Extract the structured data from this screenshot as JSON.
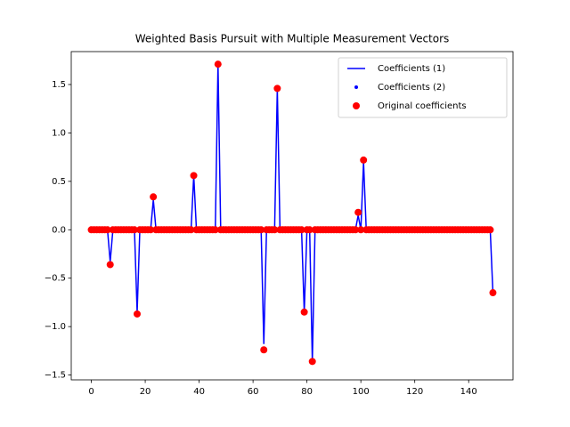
{
  "chart_data": {
    "type": "line",
    "title": "Weighted Basis Pursuit with Multiple Measurement Vectors",
    "x": [
      0,
      1,
      2,
      3,
      4,
      5,
      6,
      7,
      8,
      9,
      10,
      11,
      12,
      13,
      14,
      15,
      16,
      17,
      18,
      19,
      20,
      21,
      22,
      23,
      24,
      25,
      26,
      27,
      28,
      29,
      30,
      31,
      32,
      33,
      34,
      35,
      36,
      37,
      38,
      39,
      40,
      41,
      42,
      43,
      44,
      45,
      46,
      47,
      48,
      49,
      50,
      51,
      52,
      53,
      54,
      55,
      56,
      57,
      58,
      59,
      60,
      61,
      62,
      63,
      64,
      65,
      66,
      67,
      68,
      69,
      70,
      71,
      72,
      73,
      74,
      75,
      76,
      77,
      78,
      79,
      80,
      81,
      82,
      83,
      84,
      85,
      86,
      87,
      88,
      89,
      90,
      91,
      92,
      93,
      94,
      95,
      96,
      97,
      98,
      99,
      100,
      101,
      102,
      103,
      104,
      105,
      106,
      107,
      108,
      109,
      110,
      111,
      112,
      113,
      114,
      115,
      116,
      117,
      118,
      119,
      120,
      121,
      122,
      123,
      124,
      125,
      126,
      127,
      128,
      129,
      130,
      131,
      132,
      133,
      134,
      135,
      136,
      137,
      138,
      139,
      140,
      141,
      142,
      143,
      144,
      145,
      146,
      147,
      148,
      149
    ],
    "series": [
      {
        "name": "Coefficients (1)",
        "color": "#0000ff",
        "marker": "line",
        "values": [
          0,
          0,
          0,
          0,
          0,
          0,
          0,
          -0.33,
          0,
          0,
          0,
          0,
          0,
          0,
          0,
          0,
          0,
          -0.85,
          0,
          0,
          0,
          0,
          0,
          0.31,
          0,
          0,
          0,
          0,
          0,
          0,
          0,
          0,
          0,
          0,
          0,
          0,
          0,
          0,
          0.56,
          0,
          0,
          0,
          0,
          0,
          0,
          0,
          0,
          1.71,
          0,
          0,
          0,
          0,
          0,
          0,
          0,
          0,
          0,
          0,
          0,
          0,
          0,
          0,
          0,
          0,
          -1.18,
          0,
          0,
          0,
          0,
          1.46,
          0,
          0,
          0,
          0,
          0,
          0,
          0,
          0,
          0,
          -0.85,
          0,
          0,
          -1.36,
          0,
          0,
          0,
          0,
          0,
          0,
          0,
          0,
          0,
          0,
          0,
          0,
          0,
          0,
          0,
          0,
          0.15,
          0,
          0.7,
          0,
          0,
          0,
          0,
          0,
          0,
          0,
          0,
          0,
          0,
          0,
          0,
          0,
          0,
          0,
          0,
          0,
          0,
          0,
          0,
          0,
          0,
          0,
          0,
          0,
          0,
          0,
          0,
          0,
          0,
          0,
          0,
          0,
          0,
          0,
          0,
          0,
          0,
          0,
          0,
          0,
          0,
          0,
          0,
          0,
          0,
          0,
          -0.65
        ]
      },
      {
        "name": "Coefficients (2)",
        "color": "#0000ff",
        "marker": "point",
        "values": [
          0,
          0,
          0,
          0,
          0,
          0,
          0,
          -0.36,
          0,
          0,
          0,
          0,
          0,
          0,
          0,
          0,
          0,
          -0.87,
          0,
          0,
          0,
          0,
          0,
          0.34,
          0,
          0,
          0,
          0,
          0,
          0,
          0,
          0,
          0,
          0,
          0,
          0,
          0,
          0,
          0.56,
          0,
          0,
          0,
          0,
          0,
          0,
          0,
          0,
          1.71,
          0,
          0,
          0,
          0,
          0,
          0,
          0,
          0,
          0,
          0,
          0,
          0,
          0,
          0,
          0,
          0,
          -1.24,
          0,
          0,
          0,
          0,
          1.46,
          0,
          0,
          0,
          0,
          0,
          0,
          0,
          0,
          0,
          -0.85,
          0,
          0,
          -1.36,
          0,
          0,
          0,
          0,
          0,
          0,
          0,
          0,
          0,
          0,
          0,
          0,
          0,
          0,
          0,
          0,
          0.18,
          0,
          0.72,
          0,
          0,
          0,
          0,
          0,
          0,
          0,
          0,
          0,
          0,
          0,
          0,
          0,
          0,
          0,
          0,
          0,
          0,
          0,
          0,
          0,
          0,
          0,
          0,
          0,
          0,
          0,
          0,
          0,
          0,
          0,
          0,
          0,
          0,
          0,
          0,
          0,
          0,
          0,
          0,
          0,
          0,
          0,
          0,
          0,
          0,
          0,
          -0.65
        ]
      },
      {
        "name": "Original coefficients",
        "color": "#ff0000",
        "marker": "circle",
        "values": [
          0,
          0,
          0,
          0,
          0,
          0,
          0,
          -0.36,
          0,
          0,
          0,
          0,
          0,
          0,
          0,
          0,
          0,
          -0.87,
          0,
          0,
          0,
          0,
          0,
          0.34,
          0,
          0,
          0,
          0,
          0,
          0,
          0,
          0,
          0,
          0,
          0,
          0,
          0,
          0,
          0.56,
          0,
          0,
          0,
          0,
          0,
          0,
          0,
          0,
          1.71,
          0,
          0,
          0,
          0,
          0,
          0,
          0,
          0,
          0,
          0,
          0,
          0,
          0,
          0,
          0,
          0,
          -1.24,
          0,
          0,
          0,
          0,
          1.46,
          0,
          0,
          0,
          0,
          0,
          0,
          0,
          0,
          0,
          -0.85,
          0,
          0,
          -1.36,
          0,
          0,
          0,
          0,
          0,
          0,
          0,
          0,
          0,
          0,
          0,
          0,
          0,
          0,
          0,
          0,
          0.18,
          0,
          0.72,
          0,
          0,
          0,
          0,
          0,
          0,
          0,
          0,
          0,
          0,
          0,
          0,
          0,
          0,
          0,
          0,
          0,
          0,
          0,
          0,
          0,
          0,
          0,
          0,
          0,
          0,
          0,
          0,
          0,
          0,
          0,
          0,
          0,
          0,
          0,
          0,
          0,
          0,
          0,
          0,
          0,
          0,
          0,
          0,
          0,
          0,
          0,
          -0.65
        ]
      }
    ],
    "xlim": [
      -7.45,
      156.45
    ],
    "xticks": [
      0,
      20,
      40,
      60,
      80,
      100,
      120,
      140
    ],
    "ylim": [
      -1.55,
      1.84
    ],
    "yticks": [
      {
        "value": -1.5,
        "label": "−1.5"
      },
      {
        "value": -1,
        "label": "−1.0"
      },
      {
        "value": -0.5,
        "label": "−0.5"
      },
      {
        "value": 0,
        "label": "0.0"
      },
      {
        "value": 0.5,
        "label": "0.5"
      },
      {
        "value": 1,
        "label": "1.0"
      },
      {
        "value": 1.5,
        "label": "1.5"
      }
    ],
    "legend": "upper right"
  }
}
